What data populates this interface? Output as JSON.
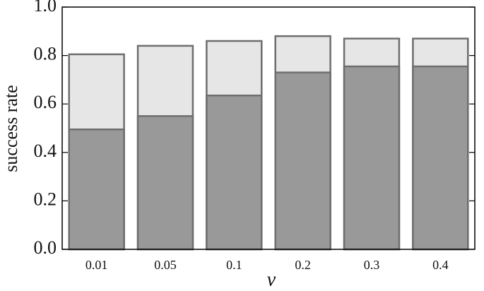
{
  "chart_data": {
    "type": "bar",
    "x_label": "ν",
    "y_label": "success rate",
    "categories": [
      "0.01",
      "0.05",
      "0.1",
      "0.2",
      "0.3",
      "0.4"
    ],
    "series": [
      {
        "color": "#e6e6e6",
        "values": [
          0.805,
          0.84,
          0.86,
          0.88,
          0.87,
          0.87
        ]
      },
      {
        "color": "#999999",
        "values": [
          0.495,
          0.55,
          0.635,
          0.73,
          0.755,
          0.755
        ]
      }
    ],
    "ylim": [
      0,
      1
    ],
    "yticks": [
      {
        "value": 0,
        "label": "0.0"
      },
      0.2,
      0.4,
      0.6,
      0.8,
      {
        "value": 1,
        "label": "1.0"
      }
    ]
  }
}
